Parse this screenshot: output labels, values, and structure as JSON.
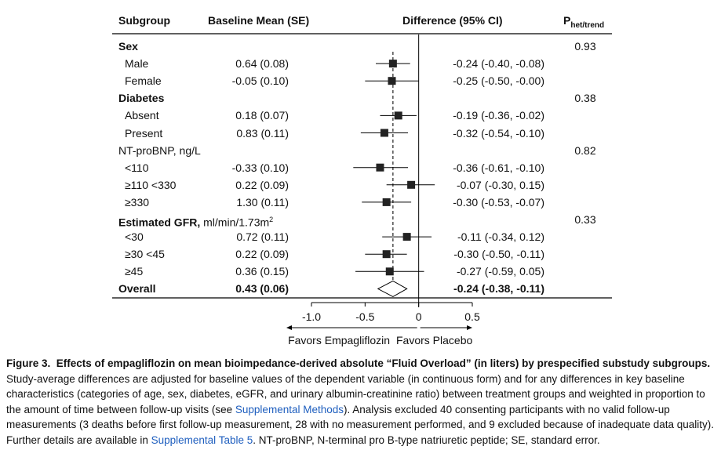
{
  "chart_data": {
    "type": "forest",
    "headers": {
      "subgroup": "Subgroup",
      "baseline": "Baseline Mean (SE)",
      "difference": "Difference (95% CI)",
      "p_main": "P",
      "p_sub": "het/trend"
    },
    "rows": [
      {
        "label": "Sex",
        "group": true,
        "bold": true,
        "p": "0.93"
      },
      {
        "label": "Male",
        "baseline": "0.64 (0.08)",
        "est": -0.24,
        "lo": -0.4,
        "hi": -0.08,
        "diff_text": "-0.24 (-0.40, -0.08)"
      },
      {
        "label": "Female",
        "baseline": "-0.05 (0.10)",
        "est": -0.25,
        "lo": -0.5,
        "hi": -0.0,
        "diff_text": "-0.25 (-0.50, -0.00)"
      },
      {
        "label": "Diabetes",
        "group": true,
        "bold": true,
        "p": "0.38"
      },
      {
        "label": "Absent",
        "baseline": "0.18 (0.07)",
        "est": -0.19,
        "lo": -0.36,
        "hi": -0.02,
        "diff_text": "-0.19 (-0.36, -0.02)"
      },
      {
        "label": "Present",
        "baseline": "0.83 (0.11)",
        "est": -0.32,
        "lo": -0.54,
        "hi": -0.1,
        "diff_text": "-0.32 (-0.54, -0.10)"
      },
      {
        "label": "NT-proBNP, ng/L",
        "group": true,
        "bold": false,
        "p": "0.82"
      },
      {
        "label": "<110",
        "baseline": "-0.33 (0.10)",
        "est": -0.36,
        "lo": -0.61,
        "hi": -0.1,
        "diff_text": "-0.36 (-0.61, -0.10)"
      },
      {
        "label": "≥110 <330",
        "baseline": "0.22 (0.09)",
        "est": -0.07,
        "lo": -0.3,
        "hi": 0.15,
        "diff_text": "-0.07 (-0.30, 0.15)"
      },
      {
        "label": "≥330",
        "baseline": "1.30 (0.11)",
        "est": -0.3,
        "lo": -0.53,
        "hi": -0.07,
        "diff_text": "-0.30 (-0.53, -0.07)"
      },
      {
        "label": "Estimated GFR,",
        "label_suffix": "ml/min/1.73m",
        "label_sup": "2",
        "group": true,
        "bold": true,
        "p": "0.33"
      },
      {
        "label": "<30",
        "baseline": "0.72 (0.11)",
        "est": -0.11,
        "lo": -0.34,
        "hi": 0.12,
        "diff_text": "-0.11 (-0.34, 0.12)"
      },
      {
        "label": "≥30 <45",
        "baseline": "0.22 (0.09)",
        "est": -0.3,
        "lo": -0.5,
        "hi": -0.11,
        "diff_text": "-0.30 (-0.50, -0.11)"
      },
      {
        "label": "≥45",
        "baseline": "0.36 (0.15)",
        "est": -0.27,
        "lo": -0.59,
        "hi": 0.05,
        "diff_text": "-0.27 (-0.59, 0.05)"
      },
      {
        "label": "Overall",
        "overall": true,
        "bold": true,
        "baseline": "0.43 (0.06)",
        "est": -0.24,
        "lo": -0.38,
        "hi": -0.11,
        "diff_text": "-0.24 (-0.38, -0.11)"
      }
    ],
    "x_axis": {
      "range": [
        -1.0,
        0.5
      ],
      "ticks": [
        -1.0,
        -0.5,
        0,
        0.5
      ],
      "tick_labels": [
        "-1.0",
        "-0.5",
        "0",
        "0.5"
      ],
      "null_line": 0,
      "reference_line": -0.24
    },
    "favors_left": "Favors Empagliflozin",
    "favors_right": "Favors Placebo"
  },
  "caption": {
    "label": "Figure 3.",
    "title": "Effects of empagliflozin on mean bioimpedance-derived absolute “Fluid Overload” (in liters) by prespecified substudy subgroups.",
    "text_1": "Study-average differences are adjusted for baseline values of the dependent variable (in continuous form) and for any differences in key baseline characteristics (categories of age, sex, diabetes, eGFR, and urinary albumin-creatinine ratio) between treatment groups and weighted in proportion to the amount of time between follow-up visits (see",
    "link_1": "Supplemental Methods",
    "text_2": "). Analysis excluded 40 consenting participants with no valid follow-up measurements (3 deaths before first follow-up measurement, 28 with no measurement performed, and 9 excluded because of inadequate data quality). Further details are available in",
    "link_2": "Supplemental Table 5",
    "text_3": ". NT-proBNP, N-terminal pro B-type natriuretic peptide; SE, standard error."
  }
}
